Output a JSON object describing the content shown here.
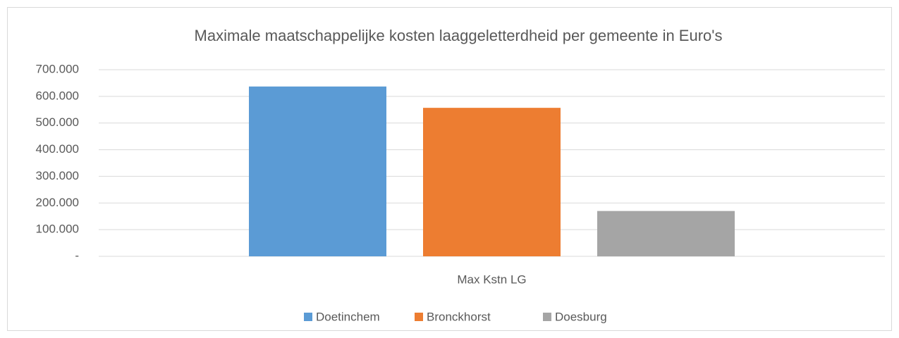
{
  "chart_data": {
    "type": "bar",
    "title": "Maximale maatschappelijke kosten laaggeletterdheid per gemeente in Euro's",
    "categories": [
      "Max Kstn LG"
    ],
    "series": [
      {
        "name": "Doetinchem",
        "color": "#5b9bd5",
        "values": [
          637000
        ]
      },
      {
        "name": "Bronckhorst",
        "color": "#ed7d31",
        "values": [
          557000
        ]
      },
      {
        "name": "Doesburg",
        "color": "#a5a5a5",
        "values": [
          170000
        ]
      }
    ],
    "ylim": [
      0,
      700000
    ],
    "yticks": [
      {
        "value": 0,
        "label": "-"
      },
      {
        "value": 100000,
        "label": "100.000"
      },
      {
        "value": 200000,
        "label": "200.000"
      },
      {
        "value": 300000,
        "label": "300.000"
      },
      {
        "value": 400000,
        "label": "400.000"
      },
      {
        "value": 500000,
        "label": "500.000"
      },
      {
        "value": 600000,
        "label": "600.000"
      },
      {
        "value": 700000,
        "label": "700.000"
      }
    ],
    "grid": true,
    "legend": "bottom"
  }
}
